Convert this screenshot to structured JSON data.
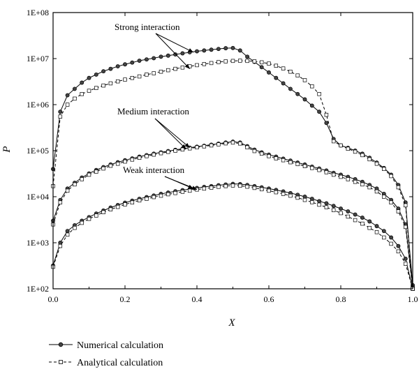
{
  "chart_data": {
    "type": "line",
    "xlabel": "X",
    "ylabel": "P",
    "xlim": [
      0,
      1
    ],
    "ylim": [
      100,
      100000000
    ],
    "yscale": "log",
    "grid": false,
    "legend_placement": "bottom",
    "x_ticks": [
      "0.0",
      "0.2",
      "0.4",
      "0.6",
      "0.8",
      "1.0"
    ],
    "y_ticks": [
      "1E+02",
      "1E+03",
      "1E+04",
      "1E+05",
      "1E+06",
      "1E+07",
      "1E+08"
    ],
    "annotations": [
      {
        "text": "Strong interaction",
        "points_at_x": [
          0.38,
          0.38
        ]
      },
      {
        "text": "Medium interaction",
        "points_at_x": [
          0.38,
          0.38
        ]
      },
      {
        "text": "Weak interaction",
        "points_at_x": [
          0.4,
          0.4
        ]
      }
    ],
    "legend": [
      {
        "label": "Numerical calculation",
        "line": "solid",
        "marker": "circle"
      },
      {
        "label": "Analytical calculation",
        "line": "dashed",
        "marker": "square"
      }
    ],
    "x": [
      0.0,
      0.02,
      0.04,
      0.06,
      0.08,
      0.1,
      0.12,
      0.14,
      0.16,
      0.18,
      0.2,
      0.22,
      0.24,
      0.26,
      0.28,
      0.3,
      0.32,
      0.34,
      0.36,
      0.38,
      0.4,
      0.42,
      0.44,
      0.46,
      0.48,
      0.5,
      0.52,
      0.54,
      0.56,
      0.58,
      0.6,
      0.62,
      0.64,
      0.66,
      0.68,
      0.7,
      0.72,
      0.74,
      0.76,
      0.78,
      0.8,
      0.82,
      0.84,
      0.86,
      0.88,
      0.9,
      0.92,
      0.94,
      0.96,
      0.98,
      1.0
    ],
    "series": [
      {
        "group": "strong",
        "style": "numerical",
        "values": [
          40000,
          700000,
          1600000,
          2200000,
          3000000,
          3800000,
          4500000,
          5300000,
          6000000,
          6800000,
          7500000,
          8200000,
          9000000,
          9600000,
          10200000,
          11000000,
          11600000,
          12300000,
          13000000,
          13700000,
          14400000,
          15000000,
          15600000,
          16200000,
          16800000,
          17000000,
          15000000,
          11000000,
          8500000,
          6500000,
          5000000,
          3800000,
          2900000,
          2200000,
          1700000,
          1300000,
          950000,
          700000,
          400000,
          180000,
          130000,
          115000,
          100000,
          86000,
          70000,
          55000,
          42000,
          30000,
          18000,
          7500,
          120
        ]
      },
      {
        "group": "strong",
        "style": "analytical",
        "values": [
          17000,
          550000,
          1000000,
          1350000,
          1700000,
          2000000,
          2300000,
          2600000,
          2900000,
          3200000,
          3500000,
          3800000,
          4100000,
          4500000,
          4800000,
          5200000,
          5600000,
          6000000,
          6400000,
          6800000,
          7200000,
          7600000,
          8000000,
          8400000,
          8700000,
          8900000,
          9000000,
          8900000,
          8700000,
          8300000,
          7800000,
          7000000,
          6100000,
          5200000,
          4300000,
          3400000,
          2500000,
          1700000,
          600000,
          160000,
          130000,
          110000,
          95000,
          80000,
          65000,
          52000,
          40000,
          28000,
          16000,
          6500,
          100
        ]
      },
      {
        "group": "medium",
        "style": "numerical",
        "values": [
          3000,
          8500,
          15000,
          20000,
          26000,
          32000,
          38000,
          44000,
          50000,
          56000,
          62000,
          68000,
          74000,
          80000,
          86000,
          92000,
          98000,
          104000,
          110000,
          116000,
          122000,
          128000,
          135000,
          142000,
          150000,
          157000,
          150000,
          125000,
          105000,
          92000,
          82000,
          74000,
          67000,
          61000,
          55000,
          50000,
          45000,
          41000,
          37000,
          33000,
          30000,
          27000,
          24000,
          21000,
          18000,
          15000,
          11500,
          8500,
          5500,
          2500,
          110
        ]
      },
      {
        "group": "medium",
        "style": "analytical",
        "values": [
          2500,
          7500,
          13500,
          18500,
          24000,
          30000,
          35000,
          41000,
          47000,
          52000,
          58000,
          64000,
          70000,
          76000,
          82000,
          88000,
          94000,
          100000,
          106000,
          112000,
          118000,
          124000,
          130000,
          137000,
          144000,
          150000,
          143000,
          118000,
          98000,
          86000,
          76000,
          68000,
          62000,
          56000,
          51000,
          46000,
          42000,
          38000,
          34000,
          30000,
          27000,
          24000,
          21000,
          18500,
          16000,
          13000,
          10000,
          7500,
          4800,
          2200,
          100
        ]
      },
      {
        "group": "weak",
        "style": "numerical",
        "values": [
          320,
          1000,
          1800,
          2400,
          3000,
          3600,
          4300,
          5000,
          5800,
          6600,
          7400,
          8200,
          9000,
          9800,
          10600,
          11500,
          12300,
          13100,
          13900,
          14700,
          15500,
          16300,
          17000,
          17700,
          18400,
          19000,
          18800,
          18000,
          17000,
          16000,
          15000,
          14000,
          13000,
          12000,
          11000,
          10000,
          9000,
          8000,
          7200,
          6300,
          5500,
          4800,
          4100,
          3500,
          2900,
          2300,
          1800,
          1300,
          850,
          450,
          100
        ]
      },
      {
        "group": "weak",
        "style": "analytical",
        "values": [
          300,
          850,
          1500,
          2100,
          2700,
          3300,
          3900,
          4600,
          5300,
          6000,
          6800,
          7500,
          8300,
          9000,
          9800,
          10500,
          11300,
          12000,
          12800,
          13500,
          14300,
          15000,
          15700,
          16400,
          17000,
          17500,
          17300,
          16500,
          15500,
          14500,
          13500,
          12500,
          11500,
          10500,
          9500,
          8500,
          7600,
          6700,
          5900,
          5100,
          4400,
          3700,
          3100,
          2600,
          2100,
          1700,
          1300,
          950,
          650,
          350,
          100
        ]
      }
    ]
  }
}
